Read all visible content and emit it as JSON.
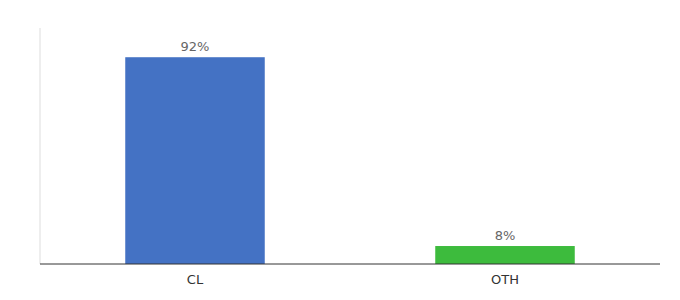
{
  "chart_data": {
    "type": "bar",
    "categories": [
      "CL",
      "OTH"
    ],
    "values": [
      92,
      8
    ],
    "value_labels": [
      "92%",
      "8%"
    ],
    "colors": [
      "#4472c4",
      "#3dbb3d"
    ],
    "ylim": [
      0,
      105
    ],
    "data_labels": true,
    "tick_labels": "x"
  }
}
